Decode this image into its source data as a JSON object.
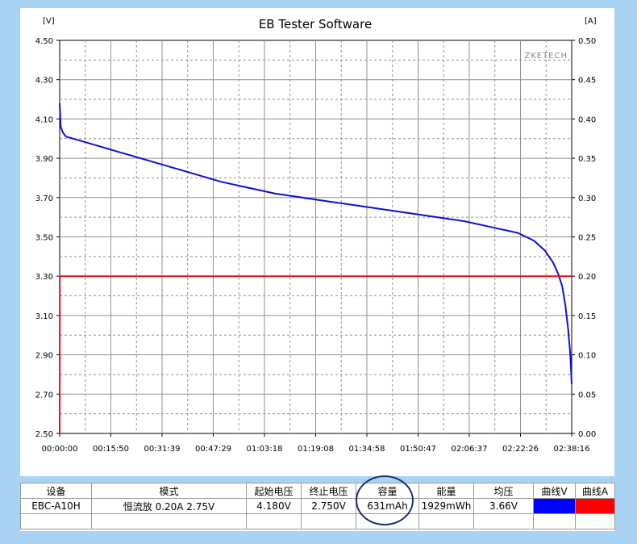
{
  "chart_data": {
    "type": "line",
    "title": "EB Tester Software",
    "watermark": "ZKETECH",
    "left_axis": {
      "unit": "[V]",
      "range": [
        2.5,
        4.5
      ],
      "ticks": [
        "2.50",
        "2.70",
        "2.90",
        "3.10",
        "3.30",
        "3.50",
        "3.70",
        "3.90",
        "4.10",
        "4.30",
        "4.50"
      ]
    },
    "right_axis": {
      "unit": "[A]",
      "range": [
        0.0,
        0.5
      ],
      "ticks": [
        "0.00",
        "0.05",
        "0.10",
        "0.15",
        "0.20",
        "0.25",
        "0.30",
        "0.35",
        "0.40",
        "0.45",
        "0.50"
      ]
    },
    "x_axis": {
      "range_seconds": [
        0,
        9496
      ],
      "ticks": [
        "00:00:00",
        "00:15:50",
        "00:31:39",
        "00:47:29",
        "01:03:18",
        "01:19:08",
        "01:34:58",
        "01:50:47",
        "02:06:37",
        "02:22:26",
        "02:38:16"
      ]
    },
    "grid": true,
    "series": [
      {
        "axis": "left",
        "color": "#1010d0",
        "points": [
          [
            0,
            4.18
          ],
          [
            20,
            4.06
          ],
          [
            60,
            4.03
          ],
          [
            120,
            4.01
          ],
          [
            250,
            4.0
          ],
          [
            500,
            3.98
          ],
          [
            1000,
            3.94
          ],
          [
            1500,
            3.9
          ],
          [
            2000,
            3.86
          ],
          [
            2500,
            3.82
          ],
          [
            3000,
            3.78
          ],
          [
            3500,
            3.75
          ],
          [
            4000,
            3.72
          ],
          [
            4500,
            3.7
          ],
          [
            5000,
            3.68
          ],
          [
            5500,
            3.66
          ],
          [
            6000,
            3.64
          ],
          [
            6500,
            3.62
          ],
          [
            7000,
            3.6
          ],
          [
            7500,
            3.58
          ],
          [
            8000,
            3.55
          ],
          [
            8500,
            3.52
          ],
          [
            8800,
            3.48
          ],
          [
            9000,
            3.43
          ],
          [
            9150,
            3.37
          ],
          [
            9250,
            3.31
          ],
          [
            9320,
            3.25
          ],
          [
            9380,
            3.15
          ],
          [
            9430,
            3.03
          ],
          [
            9470,
            2.9
          ],
          [
            9496,
            2.75
          ]
        ]
      },
      {
        "axis": "right",
        "color": "#e01010",
        "points": [
          [
            0,
            0.0
          ],
          [
            3,
            0.2
          ],
          [
            9496,
            0.2
          ]
        ]
      }
    ]
  },
  "table": {
    "headers": [
      "设备",
      "模式",
      "起始电压",
      "终止电压",
      "容量",
      "能量",
      "均压",
      "曲线V",
      "曲线A"
    ],
    "row": [
      "EBC-A10H",
      "恒流放  0.20A  2.75V",
      "4.180V",
      "2.750V",
      "631mAh",
      "1929mWh",
      "3.66V"
    ],
    "curve_v_color": "#0000ff",
    "curve_a_color": "#ff0000"
  }
}
